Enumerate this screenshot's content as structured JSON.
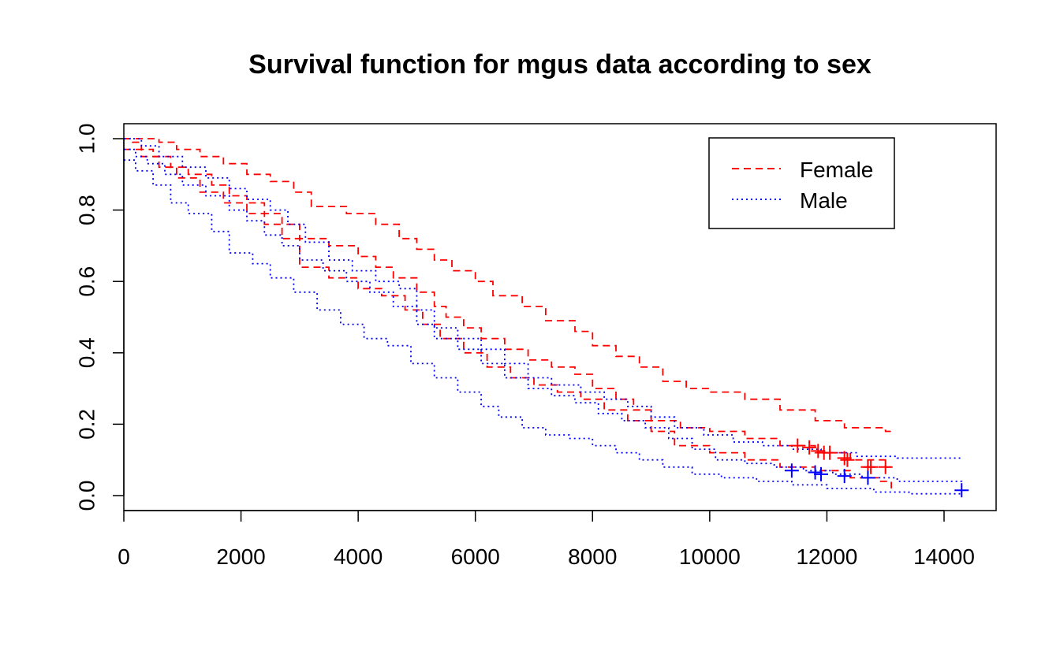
{
  "chart_data": {
    "type": "line",
    "subtype": "kaplan-meier-step",
    "title": "Survival function for mgus data according to sex",
    "xlabel": "",
    "ylabel": "",
    "xlim": [
      0,
      14300
    ],
    "ylim": [
      0,
      1
    ],
    "x_ticks": [
      0,
      2000,
      4000,
      6000,
      8000,
      10000,
      12000,
      14000
    ],
    "y_ticks": [
      0.0,
      0.2,
      0.4,
      0.6,
      0.8,
      1.0
    ],
    "x_tick_labels": [
      "0",
      "2000",
      "4000",
      "6000",
      "8000",
      "10000",
      "12000",
      "14000"
    ],
    "y_tick_labels": [
      "0.0",
      "0.2",
      "0.4",
      "0.6",
      "0.8",
      "1.0"
    ],
    "grid": false,
    "legend": {
      "position": "top-right",
      "entries": [
        {
          "label": "Female",
          "color": "#ff0000",
          "linestyle": "dashed"
        },
        {
          "label": "Male",
          "color": "#0000ff",
          "linestyle": "dotted"
        }
      ]
    },
    "series": [
      {
        "name": "Female",
        "color": "#ff0000",
        "linestyle": "dashed",
        "curves": {
          "estimate": [
            [
              0,
              1.0
            ],
            [
              150,
              0.99
            ],
            [
              300,
              0.97
            ],
            [
              500,
              0.95
            ],
            [
              800,
              0.92
            ],
            [
              1100,
              0.9
            ],
            [
              1500,
              0.87
            ],
            [
              1800,
              0.84
            ],
            [
              2100,
              0.82
            ],
            [
              2400,
              0.79
            ],
            [
              2700,
              0.76
            ],
            [
              3000,
              0.72
            ],
            [
              3500,
              0.7
            ],
            [
              4000,
              0.67
            ],
            [
              4300,
              0.64
            ],
            [
              4600,
              0.61
            ],
            [
              5000,
              0.57
            ],
            [
              5300,
              0.53
            ],
            [
              5500,
              0.5
            ],
            [
              5800,
              0.47
            ],
            [
              6100,
              0.44
            ],
            [
              6500,
              0.41
            ],
            [
              6900,
              0.38
            ],
            [
              7300,
              0.36
            ],
            [
              7700,
              0.34
            ],
            [
              8000,
              0.3
            ],
            [
              8400,
              0.27
            ],
            [
              8700,
              0.24
            ],
            [
              9000,
              0.21
            ],
            [
              9500,
              0.19
            ],
            [
              10000,
              0.18
            ],
            [
              10600,
              0.16
            ],
            [
              11200,
              0.14
            ],
            [
              11800,
              0.12
            ],
            [
              12400,
              0.1
            ],
            [
              13000,
              0.08
            ],
            [
              13100,
              0.08
            ]
          ],
          "upper": [
            [
              0,
              1.0
            ],
            [
              300,
              1.0
            ],
            [
              600,
              0.99
            ],
            [
              900,
              0.97
            ],
            [
              1300,
              0.95
            ],
            [
              1700,
              0.93
            ],
            [
              2100,
              0.9
            ],
            [
              2500,
              0.88
            ],
            [
              2900,
              0.85
            ],
            [
              3200,
              0.81
            ],
            [
              3800,
              0.79
            ],
            [
              4300,
              0.76
            ],
            [
              4700,
              0.72
            ],
            [
              5000,
              0.69
            ],
            [
              5300,
              0.66
            ],
            [
              5600,
              0.63
            ],
            [
              6000,
              0.6
            ],
            [
              6300,
              0.56
            ],
            [
              6800,
              0.53
            ],
            [
              7200,
              0.49
            ],
            [
              7700,
              0.46
            ],
            [
              8000,
              0.42
            ],
            [
              8400,
              0.39
            ],
            [
              8800,
              0.36
            ],
            [
              9200,
              0.32
            ],
            [
              9600,
              0.3
            ],
            [
              10000,
              0.29
            ],
            [
              10600,
              0.27
            ],
            [
              11200,
              0.24
            ],
            [
              11800,
              0.21
            ],
            [
              12300,
              0.19
            ],
            [
              13000,
              0.18
            ],
            [
              13100,
              0.18
            ]
          ],
          "lower": [
            [
              0,
              0.97
            ],
            [
              300,
              0.95
            ],
            [
              600,
              0.92
            ],
            [
              900,
              0.89
            ],
            [
              1300,
              0.85
            ],
            [
              1700,
              0.82
            ],
            [
              2100,
              0.79
            ],
            [
              2400,
              0.76
            ],
            [
              2700,
              0.72
            ],
            [
              3000,
              0.64
            ],
            [
              3500,
              0.61
            ],
            [
              4000,
              0.58
            ],
            [
              4400,
              0.56
            ],
            [
              4800,
              0.52
            ],
            [
              5100,
              0.48
            ],
            [
              5400,
              0.44
            ],
            [
              5800,
              0.4
            ],
            [
              6200,
              0.36
            ],
            [
              6600,
              0.33
            ],
            [
              7000,
              0.31
            ],
            [
              7400,
              0.29
            ],
            [
              7800,
              0.27
            ],
            [
              8200,
              0.24
            ],
            [
              8600,
              0.21
            ],
            [
              9000,
              0.18
            ],
            [
              9400,
              0.14
            ],
            [
              10000,
              0.12
            ],
            [
              10600,
              0.1
            ],
            [
              11200,
              0.08
            ],
            [
              11800,
              0.07
            ],
            [
              12400,
              0.05
            ],
            [
              12900,
              0.04
            ],
            [
              13100,
              0.02
            ]
          ]
        },
        "censored": [
          [
            11500,
            0.14
          ],
          [
            11700,
            0.135
          ],
          [
            11850,
            0.125
          ],
          [
            11950,
            0.12
          ],
          [
            12050,
            0.12
          ],
          [
            12300,
            0.105
          ],
          [
            12350,
            0.1
          ],
          [
            12700,
            0.08
          ],
          [
            12750,
            0.08
          ],
          [
            13000,
            0.08
          ]
        ]
      },
      {
        "name": "Male",
        "color": "#0000ff",
        "linestyle": "dotted",
        "curves": {
          "estimate": [
            [
              0,
              0.97
            ],
            [
              200,
              0.95
            ],
            [
              400,
              0.93
            ],
            [
              700,
              0.9
            ],
            [
              1000,
              0.87
            ],
            [
              1400,
              0.84
            ],
            [
              1800,
              0.8
            ],
            [
              2100,
              0.77
            ],
            [
              2400,
              0.73
            ],
            [
              2700,
              0.7
            ],
            [
              3000,
              0.66
            ],
            [
              3400,
              0.63
            ],
            [
              3800,
              0.6
            ],
            [
              4200,
              0.57
            ],
            [
              4600,
              0.53
            ],
            [
              5000,
              0.48
            ],
            [
              5300,
              0.44
            ],
            [
              5700,
              0.41
            ],
            [
              6100,
              0.37
            ],
            [
              6500,
              0.33
            ],
            [
              6900,
              0.3
            ],
            [
              7300,
              0.28
            ],
            [
              7700,
              0.26
            ],
            [
              8100,
              0.23
            ],
            [
              8500,
              0.21
            ],
            [
              8900,
              0.19
            ],
            [
              9300,
              0.16
            ],
            [
              9700,
              0.13
            ],
            [
              10100,
              0.1
            ],
            [
              10600,
              0.09
            ],
            [
              11100,
              0.08
            ],
            [
              11600,
              0.07
            ],
            [
              12100,
              0.06
            ],
            [
              12600,
              0.05
            ],
            [
              13200,
              0.04
            ],
            [
              14300,
              0.03
            ]
          ],
          "upper": [
            [
              0,
              1.0
            ],
            [
              300,
              0.98
            ],
            [
              600,
              0.95
            ],
            [
              1000,
              0.92
            ],
            [
              1400,
              0.89
            ],
            [
              1800,
              0.86
            ],
            [
              2100,
              0.83
            ],
            [
              2500,
              0.8
            ],
            [
              2800,
              0.76
            ],
            [
              3100,
              0.71
            ],
            [
              3500,
              0.66
            ],
            [
              3900,
              0.63
            ],
            [
              4300,
              0.6
            ],
            [
              4700,
              0.58
            ],
            [
              5000,
              0.52
            ],
            [
              5300,
              0.47
            ],
            [
              5700,
              0.44
            ],
            [
              6100,
              0.41
            ],
            [
              6500,
              0.37
            ],
            [
              6900,
              0.33
            ],
            [
              7300,
              0.31
            ],
            [
              7800,
              0.29
            ],
            [
              8200,
              0.27
            ],
            [
              8600,
              0.25
            ],
            [
              9000,
              0.22
            ],
            [
              9400,
              0.19
            ],
            [
              9900,
              0.17
            ],
            [
              10400,
              0.15
            ],
            [
              10900,
              0.14
            ],
            [
              11400,
              0.13
            ],
            [
              11900,
              0.12
            ],
            [
              12500,
              0.11
            ],
            [
              13200,
              0.105
            ],
            [
              14300,
              0.105
            ]
          ],
          "lower": [
            [
              0,
              0.94
            ],
            [
              200,
              0.91
            ],
            [
              500,
              0.87
            ],
            [
              800,
              0.82
            ],
            [
              1100,
              0.79
            ],
            [
              1500,
              0.74
            ],
            [
              1800,
              0.68
            ],
            [
              2200,
              0.65
            ],
            [
              2500,
              0.61
            ],
            [
              2900,
              0.57
            ],
            [
              3300,
              0.52
            ],
            [
              3700,
              0.48
            ],
            [
              4100,
              0.44
            ],
            [
              4500,
              0.42
            ],
            [
              4900,
              0.37
            ],
            [
              5300,
              0.33
            ],
            [
              5700,
              0.29
            ],
            [
              6100,
              0.25
            ],
            [
              6400,
              0.22
            ],
            [
              6800,
              0.19
            ],
            [
              7200,
              0.17
            ],
            [
              7600,
              0.16
            ],
            [
              8000,
              0.14
            ],
            [
              8400,
              0.12
            ],
            [
              8800,
              0.1
            ],
            [
              9200,
              0.08
            ],
            [
              9700,
              0.06
            ],
            [
              10200,
              0.05
            ],
            [
              10800,
              0.04
            ],
            [
              11400,
              0.03
            ],
            [
              12000,
              0.02
            ],
            [
              12800,
              0.01
            ],
            [
              13400,
              0.005
            ],
            [
              14300,
              0.005
            ]
          ]
        },
        "censored": [
          [
            11400,
            0.07
          ],
          [
            11800,
            0.065
          ],
          [
            11900,
            0.06
          ],
          [
            12300,
            0.055
          ],
          [
            12700,
            0.05
          ],
          [
            14300,
            0.015
          ]
        ]
      }
    ]
  }
}
